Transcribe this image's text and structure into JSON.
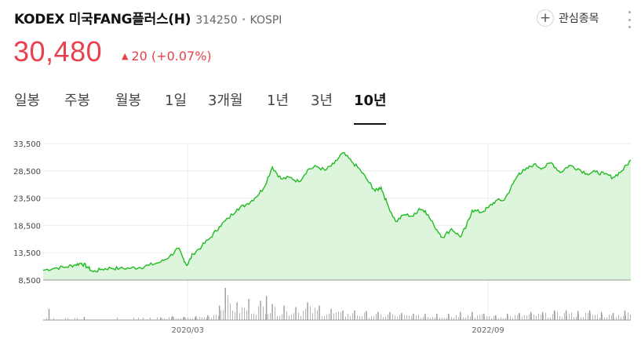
{
  "header": {
    "stock_name": "KODEX 미국FANG플러스(H)",
    "stock_code": "314250",
    "separator": "•",
    "market": "KOSPI",
    "watch_label": "관심종목",
    "watch_icon": "plus-circle-icon",
    "more_icon": "more-vertical-icon"
  },
  "quote": {
    "price": "30,480",
    "change_arrow": "▲",
    "change": "20",
    "change_pct": "(+0.07%)",
    "color": "#e8414d"
  },
  "tabs": [
    {
      "label": "일봉"
    },
    {
      "label": "주봉"
    },
    {
      "label": "월봉"
    },
    {
      "label": "1일"
    },
    {
      "label": "3개월"
    },
    {
      "label": "1년"
    },
    {
      "label": "3년"
    },
    {
      "label": "10년",
      "active": true
    }
  ],
  "chart_data": {
    "type": "area",
    "line_color": "#22bb22",
    "fill_color": "#dcf5dc",
    "y_ticks": [
      "33,500",
      "28,500",
      "23,500",
      "18,500",
      "13,500",
      "8,500"
    ],
    "y_tick_values": [
      33500,
      28500,
      23500,
      18500,
      13500,
      8500
    ],
    "ylim": [
      8500,
      33500
    ],
    "x_labels": [
      "2020/03",
      "2022/09"
    ],
    "x_label_values": [
      0.246,
      0.757
    ],
    "price_x": [
      0,
      0.02,
      0.04,
      0.055,
      0.065,
      0.075,
      0.085,
      0.1,
      0.115,
      0.13,
      0.15,
      0.165,
      0.18,
      0.2,
      0.215,
      0.23,
      0.238,
      0.245,
      0.255,
      0.27,
      0.285,
      0.3,
      0.315,
      0.33,
      0.345,
      0.36,
      0.375,
      0.39,
      0.405,
      0.42,
      0.435,
      0.45,
      0.465,
      0.48,
      0.495,
      0.51,
      0.525,
      0.54,
      0.555,
      0.565,
      0.575,
      0.585,
      0.6,
      0.615,
      0.63,
      0.64,
      0.65,
      0.665,
      0.68,
      0.695,
      0.71,
      0.72,
      0.73,
      0.745,
      0.758,
      0.77,
      0.785,
      0.8,
      0.81,
      0.82,
      0.835,
      0.85,
      0.865,
      0.88,
      0.895,
      0.91,
      0.925,
      0.94,
      0.955,
      0.97,
      0.985,
      1.0
    ],
    "price_y": [
      10300,
      10700,
      10900,
      11300,
      11600,
      10900,
      10000,
      10500,
      10700,
      10600,
      10700,
      10800,
      11200,
      11800,
      12800,
      14300,
      12500,
      11200,
      13300,
      14700,
      16300,
      18300,
      19800,
      21500,
      22300,
      23500,
      25300,
      29200,
      27000,
      27300,
      26500,
      28700,
      29300,
      28600,
      29800,
      31800,
      30200,
      28600,
      26300,
      24800,
      25500,
      22600,
      19200,
      20500,
      20200,
      21600,
      21200,
      18500,
      16300,
      17900,
      16400,
      18300,
      21300,
      20900,
      21800,
      23000,
      23200,
      26200,
      28100,
      28600,
      29700,
      29000,
      30000,
      28200,
      29500,
      28900,
      28000,
      28300,
      27900,
      27300,
      28500,
      30480
    ],
    "volume_x": [
      0.01,
      0.07,
      0.2,
      0.22,
      0.24,
      0.26,
      0.28,
      0.3,
      0.31,
      0.33,
      0.35,
      0.37,
      0.38,
      0.39,
      0.41,
      0.43,
      0.45,
      0.47,
      0.49,
      0.51,
      0.53,
      0.55,
      0.57,
      0.59,
      0.61,
      0.63,
      0.65,
      0.67,
      0.69,
      0.71,
      0.73,
      0.75,
      0.77,
      0.79,
      0.81,
      0.83,
      0.85,
      0.87,
      0.89,
      0.91,
      0.93,
      0.95,
      0.97,
      0.99
    ],
    "volume_v": [
      0.35,
      0.1,
      0.08,
      0.12,
      0.1,
      0.12,
      0.15,
      0.45,
      1.0,
      0.55,
      0.65,
      0.6,
      0.75,
      0.5,
      0.45,
      0.4,
      0.55,
      0.45,
      0.35,
      0.3,
      0.3,
      0.28,
      0.25,
      0.25,
      0.22,
      0.2,
      0.2,
      0.2,
      0.2,
      0.25,
      0.25,
      0.2,
      0.15,
      0.2,
      0.22,
      0.25,
      0.25,
      0.3,
      0.3,
      0.28,
      0.3,
      0.25,
      0.22,
      0.3
    ]
  }
}
